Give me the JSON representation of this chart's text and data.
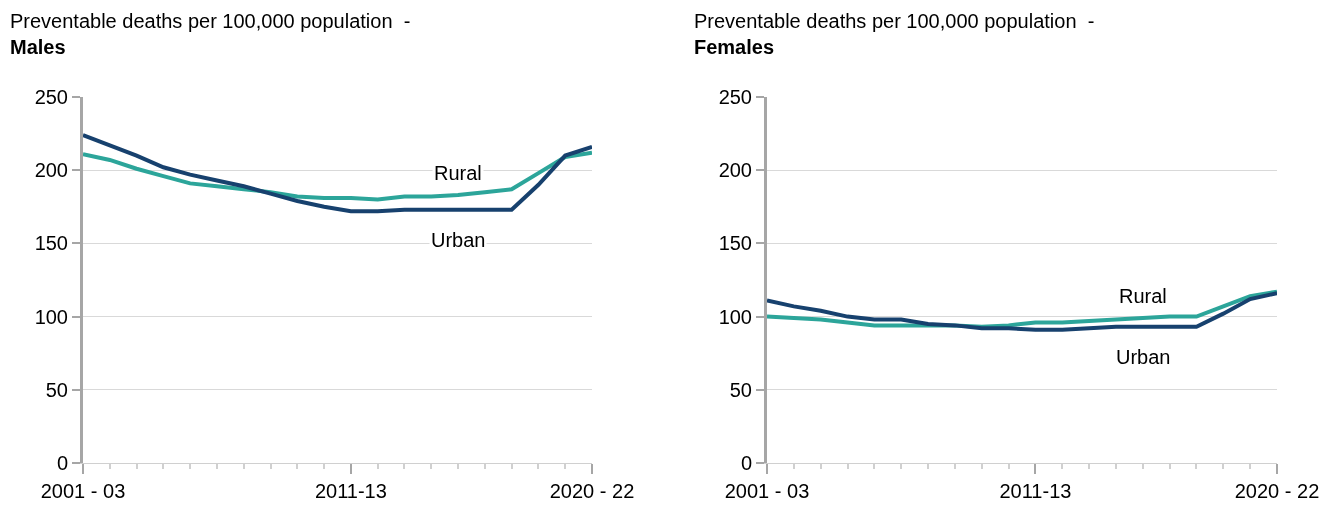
{
  "chart_data": [
    {
      "type": "line",
      "title": "Preventable deaths per 100,000 population  -",
      "subtitle": "Males",
      "categories": [
        "2001 - 03",
        null,
        null,
        null,
        null,
        null,
        null,
        null,
        null,
        null,
        "2011-13",
        null,
        null,
        null,
        null,
        null,
        null,
        null,
        null,
        "2020 - 22"
      ],
      "series": [
        {
          "name": "Rural",
          "color": "#2ca59a",
          "values": [
            211,
            207,
            201,
            196,
            191,
            189,
            187,
            185,
            182,
            181,
            181,
            180,
            182,
            182,
            183,
            185,
            187,
            198,
            209,
            212
          ]
        },
        {
          "name": "Urban",
          "color": "#17416e",
          "values": [
            224,
            217,
            210,
            202,
            197,
            193,
            189,
            184,
            179,
            175,
            172,
            172,
            173,
            173,
            173,
            173,
            173,
            190,
            210,
            216
          ]
        }
      ],
      "ylim": [
        0,
        250
      ],
      "yticks": [
        0,
        50,
        100,
        150,
        200,
        250
      ],
      "grid": "y",
      "marker": "none",
      "line_style": "solid"
    },
    {
      "type": "line",
      "title": "Preventable deaths per 100,000 population  -",
      "subtitle": "Females",
      "categories": [
        "2001 - 03",
        null,
        null,
        null,
        null,
        null,
        null,
        null,
        null,
        null,
        "2011-13",
        null,
        null,
        null,
        null,
        null,
        null,
        null,
        null,
        "2020 - 22"
      ],
      "series": [
        {
          "name": "Rural",
          "color": "#2ca59a",
          "values": [
            100,
            99,
            98,
            96,
            94,
            94,
            94,
            94,
            93,
            94,
            96,
            96,
            97,
            98,
            99,
            100,
            100,
            107,
            114,
            117
          ]
        },
        {
          "name": "Urban",
          "color": "#17416e",
          "values": [
            111,
            107,
            104,
            100,
            98,
            98,
            95,
            94,
            92,
            92,
            91,
            91,
            92,
            93,
            93,
            93,
            93,
            102,
            112,
            116
          ]
        }
      ],
      "ylim": [
        0,
        250
      ],
      "yticks": [
        0,
        50,
        100,
        150,
        200,
        250
      ],
      "grid": "y",
      "marker": "none",
      "line_style": "solid"
    }
  ]
}
